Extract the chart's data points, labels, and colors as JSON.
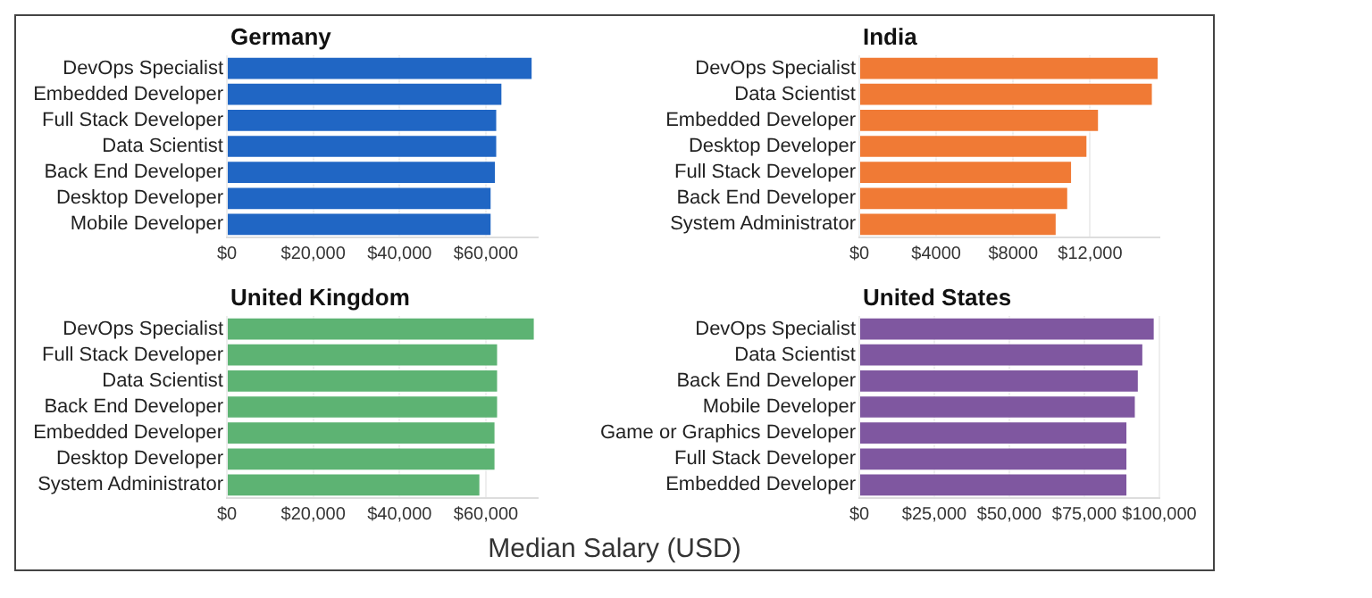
{
  "chart_data": [
    {
      "type": "bar",
      "orientation": "horizontal",
      "title": "Germany",
      "categories": [
        "DevOps Specialist",
        "Embedded Developer",
        "Full Stack Developer",
        "Data Scientist",
        "Back End Developer",
        "Desktop Developer",
        "Mobile Developer"
      ],
      "values": [
        71000,
        64000,
        62800,
        62800,
        62500,
        61500,
        61500
      ],
      "color": "#2066c4",
      "xlim": [
        0,
        72000
      ],
      "xticks": [
        {
          "value": 0,
          "label": "$0"
        },
        {
          "value": 20000,
          "label": "$20,000"
        },
        {
          "value": 40000,
          "label": "$40,000"
        },
        {
          "value": 60000,
          "label": "$60,000"
        }
      ],
      "grid": "x",
      "legend": false
    },
    {
      "type": "bar",
      "orientation": "horizontal",
      "title": "India",
      "categories": [
        "DevOps Specialist",
        "Data Scientist",
        "Embedded Developer",
        "Desktop Developer",
        "Full Stack Developer",
        "Back End Developer",
        "System Administrator"
      ],
      "values": [
        15600,
        15300,
        12500,
        11900,
        11100,
        10900,
        10300
      ],
      "color": "#f07a35",
      "xlim": [
        0,
        15600
      ],
      "xticks": [
        {
          "value": 0,
          "label": "$0"
        },
        {
          "value": 4000,
          "label": "$4000"
        },
        {
          "value": 8000,
          "label": "$8000"
        },
        {
          "value": 12000,
          "label": "$12,000"
        }
      ],
      "grid": "x",
      "legend": false
    },
    {
      "type": "bar",
      "orientation": "horizontal",
      "title": "United Kingdom",
      "xlabel": "Median Salary (USD)",
      "categories": [
        "DevOps Specialist",
        "Full Stack Developer",
        "Data Scientist",
        "Back End Developer",
        "Embedded Developer",
        "Desktop Developer",
        "System Administrator"
      ],
      "values": [
        71500,
        63000,
        63000,
        63000,
        62400,
        62400,
        58900
      ],
      "color": "#5db373",
      "xlim": [
        0,
        72000
      ],
      "xticks": [
        {
          "value": 0,
          "label": "$0"
        },
        {
          "value": 20000,
          "label": "$20,000"
        },
        {
          "value": 40000,
          "label": "$40,000"
        },
        {
          "value": 60000,
          "label": "$60,000"
        }
      ],
      "grid": "x",
      "legend": false
    },
    {
      "type": "bar",
      "orientation": "horizontal",
      "title": "United States",
      "categories": [
        "DevOps Specialist",
        "Data Scientist",
        "Back End Developer",
        "Mobile Developer",
        "Game or Graphics Developer",
        "Full Stack Developer",
        "Embedded Developer"
      ],
      "values": [
        98700,
        94900,
        93400,
        92400,
        89600,
        89600,
        89600
      ],
      "color": "#7f57a0",
      "xlim": [
        0,
        100000
      ],
      "xticks": [
        {
          "value": 0,
          "label": "$0"
        },
        {
          "value": 25000,
          "label": "$25,000"
        },
        {
          "value": 50000,
          "label": "$50,000"
        },
        {
          "value": 75000,
          "label": "$75,000"
        },
        {
          "value": 100000,
          "label": "$100,000"
        }
      ],
      "grid": "x",
      "legend": false
    }
  ]
}
